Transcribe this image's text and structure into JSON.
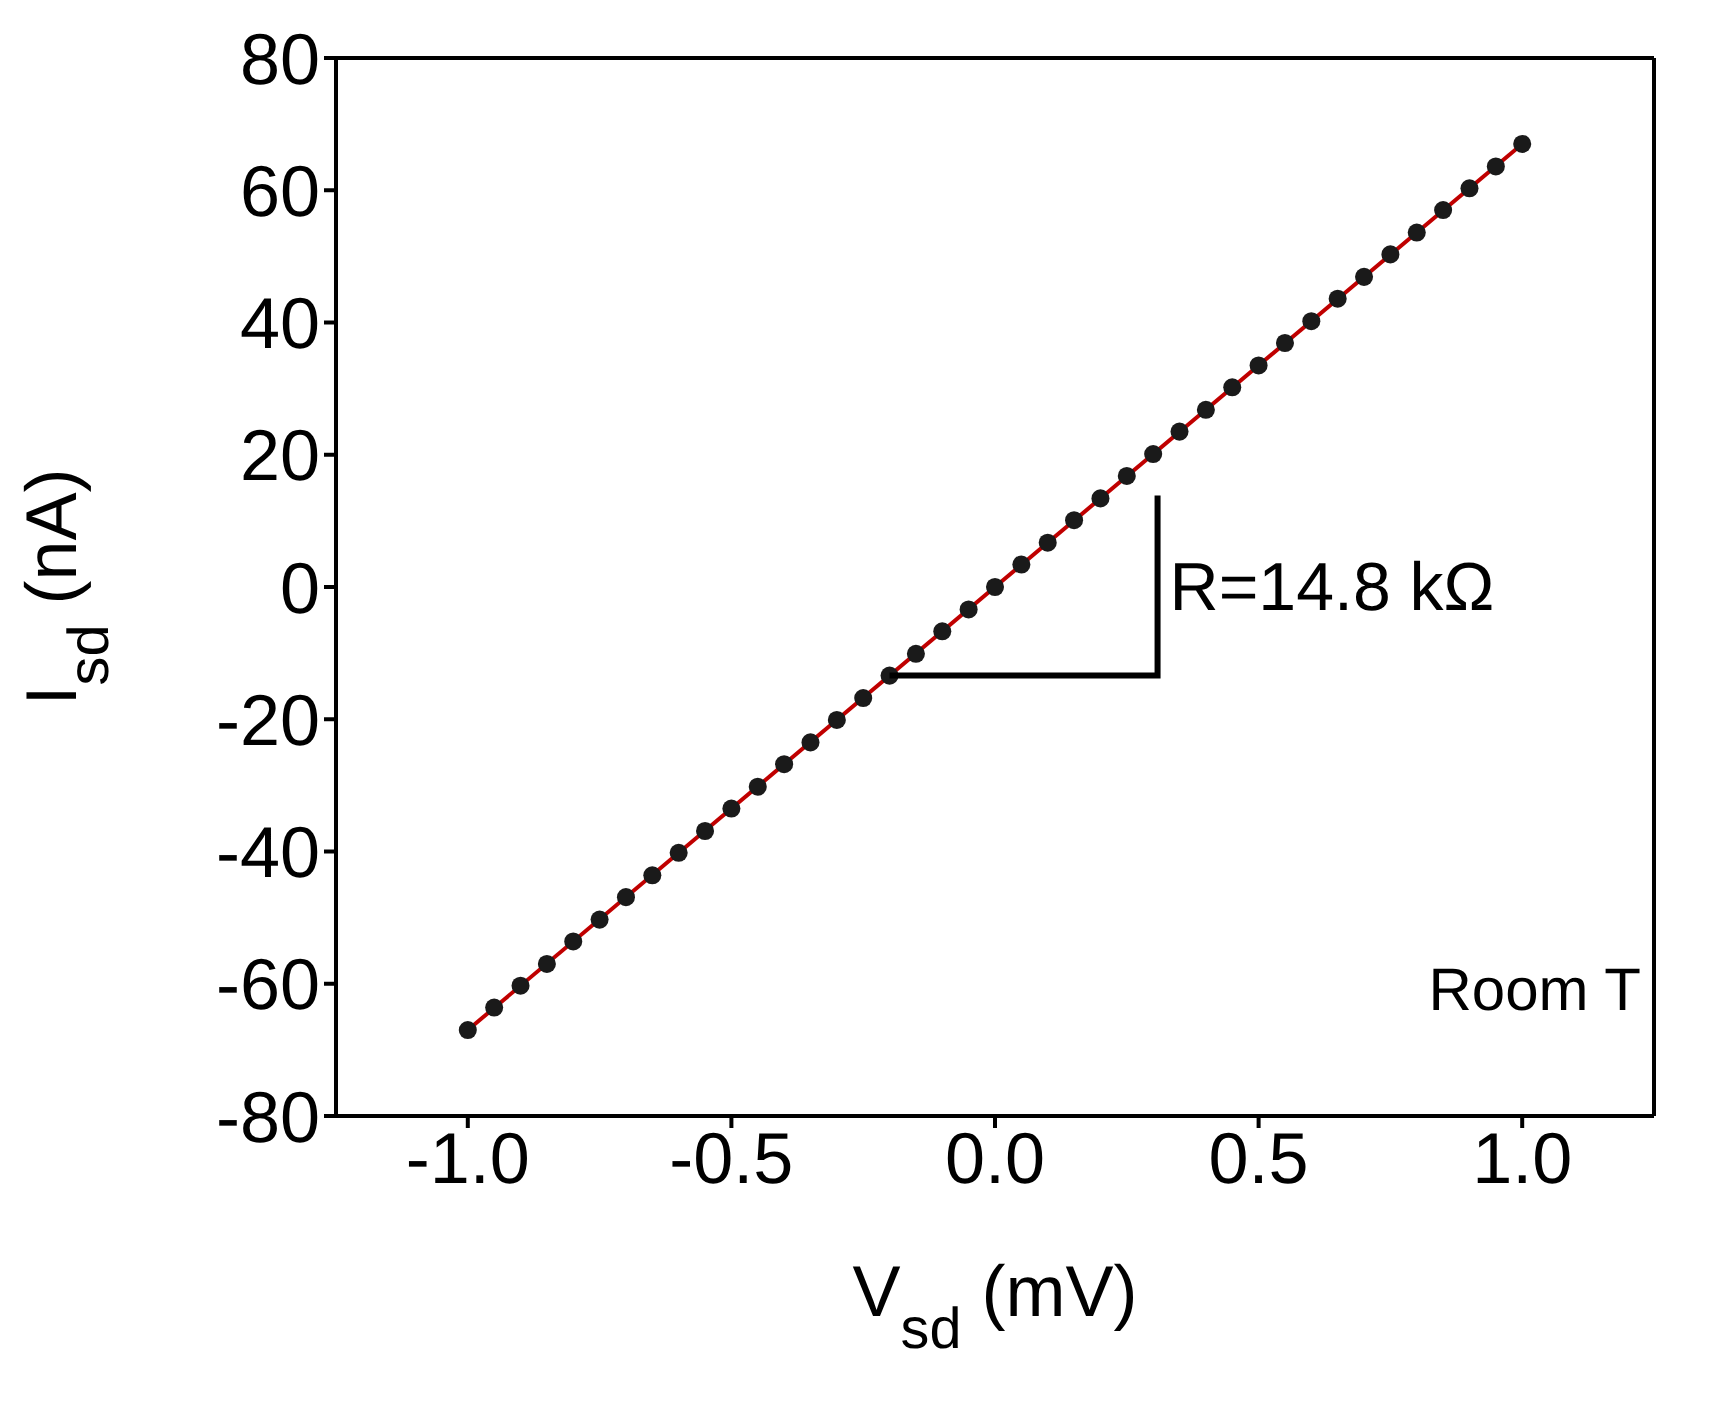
{
  "chart_data": {
    "type": "scatter",
    "xlabel": "V$_{sd}$ (mV)",
    "ylabel": "I$_{sd}$ (nA)",
    "xlim": [
      -1.25,
      1.25
    ],
    "ylim": [
      -80,
      80
    ],
    "xticks": [
      {
        "value": -1,
        "label": "-1.0"
      },
      {
        "value": -0.5,
        "label": "-0.5"
      },
      {
        "value": 0,
        "label": "0.0"
      },
      {
        "value": 0.5,
        "label": "0.5"
      },
      {
        "value": 1,
        "label": "1.0"
      }
    ],
    "yticks": [
      -80,
      -60,
      -40,
      -20,
      0,
      20,
      40,
      60,
      80
    ],
    "marker": "circle",
    "x": [
      -1,
      -0.95,
      -0.9,
      -0.85,
      -0.8,
      -0.75,
      -0.7,
      -0.65,
      -0.6,
      -0.55,
      -0.5,
      -0.45,
      -0.4,
      -0.35,
      -0.3,
      -0.25,
      -0.2,
      -0.15,
      -0.1,
      -0.05,
      0,
      0.05,
      0.1,
      0.15,
      0.2,
      0.25,
      0.3,
      0.35,
      0.4,
      0.45,
      0.5,
      0.55,
      0.6,
      0.65,
      0.7,
      0.75,
      0.8,
      0.85,
      0.9,
      0.95,
      1
    ],
    "series": [
      {
        "color": "#1a1a1a",
        "values": [
          -67,
          -63.6,
          -60.3,
          -57,
          -53.6,
          -50.3,
          -46.9,
          -43.6,
          -40.2,
          -36.9,
          -33.5,
          -30.2,
          -26.8,
          -23.5,
          -20.1,
          -16.8,
          -13.4,
          -10.1,
          -6.7,
          -3.4,
          0,
          3.4,
          6.7,
          10.1,
          13.4,
          16.8,
          20.1,
          23.5,
          26.8,
          30.2,
          33.5,
          36.9,
          40.2,
          43.6,
          46.9,
          50.3,
          53.6,
          57,
          60.3,
          63.6,
          67
        ]
      },
      {
        "type": "line",
        "color": "#c00000",
        "x": [
          -1,
          1
        ],
        "values": [
          -67,
          67
        ],
        "line_style": "solid",
        "marker": "none"
      }
    ],
    "annotations": [
      {
        "text": "R=14.8 kΩ",
        "x": -0.2,
        "y": -13.4
      },
      "Room T"
    ]
  }
}
